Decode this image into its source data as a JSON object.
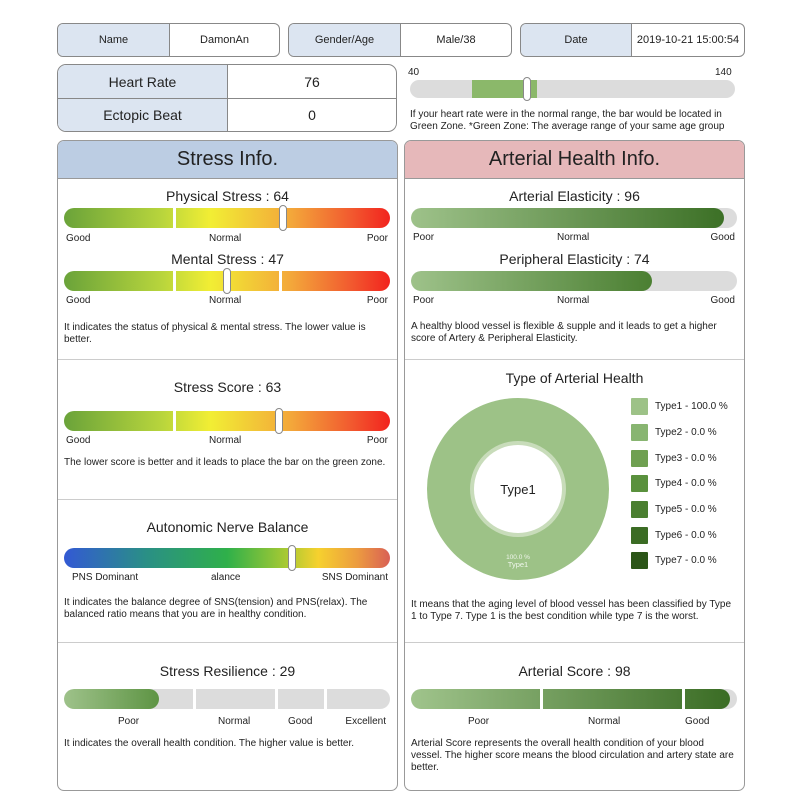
{
  "header": {
    "name_label": "Name",
    "name_value": "DamonAn",
    "gender_label": "Gender/Age",
    "gender_value": "Male/38",
    "date_label": "Date",
    "date_value": "2019-10-21 15:00:54"
  },
  "vitals": {
    "heart_rate_label": "Heart Rate",
    "heart_rate_value": "76",
    "ectopic_label": "Ectopic Beat",
    "ectopic_value": "0"
  },
  "heart_rate_bar": {
    "min_label": "40",
    "max_label": "140",
    "min": 40,
    "max": 140,
    "green_zone": [
      59,
      79
    ],
    "value": 76,
    "description": "If your heart rate were in the normal range, the bar would be located in Green Zone. *Green Zone: The average range of your same age group"
  },
  "stress": {
    "title": "Stress Info.",
    "physical": {
      "label": "Physical Stress : 64",
      "value": 64,
      "labels": [
        "Good",
        "Normal",
        "Poor"
      ]
    },
    "mental": {
      "label": "Mental Stress : 47",
      "value": 47,
      "labels": [
        "Good",
        "Normal",
        "Poor"
      ]
    },
    "stress_desc": "It indicates the status of physical & mental stress. The lower value is better.",
    "score": {
      "label": "Stress Score : 63",
      "value": 63,
      "labels": [
        "Good",
        "Normal",
        "Poor"
      ],
      "description": "The lower score is better and it leads to place the bar on the green zone."
    },
    "ans": {
      "label": "Autonomic Nerve Balance",
      "position_percent": 70,
      "labels": [
        "PNS Dominant",
        "alance",
        "SNS Dominant"
      ],
      "description": "It indicates the balance degree of SNS(tension) and PNS(relax). The balanced ratio means that you are in healthy condition."
    },
    "resilience": {
      "label": "Stress Resilience : 29",
      "value": 29,
      "labels": [
        "Poor",
        "Normal",
        "Good",
        "Excellent"
      ],
      "description": "It indicates the overall health condition. The higher value is better."
    }
  },
  "arterial": {
    "title": "Arterial Health Info.",
    "elasticity": {
      "label": "Arterial Elasticity : 96",
      "value": 96,
      "labels": [
        "Poor",
        "Normal",
        "Good"
      ]
    },
    "peripheral": {
      "label": "Peripheral Elasticity : 74",
      "value": 74,
      "labels": [
        "Poor",
        "Normal",
        "Good"
      ]
    },
    "elasticity_desc": "A healthy blood vessel is flexible & supple and it leads to get a higher score of Artery & Peripheral Elasticity.",
    "type_title": "Type of Arterial Health",
    "type_center": "Type1",
    "type_slice_label_pct": "100.0 %",
    "type_slice_label_name": "Type1",
    "type_desc": "It means that the aging level of blood vessel has been classified by Type 1 to Type 7. Type 1 is the best condition while type 7 is the worst.",
    "score": {
      "label": "Arterial Score : 98",
      "value": 98,
      "labels": [
        "Poor",
        "Normal",
        "Good"
      ],
      "description": "Arterial Score represents the overall health condition of your blood vessel. The higher score means the blood circulation and artery state are better."
    }
  },
  "chart_data": {
    "type": "pie",
    "title": "Type of Arterial Health",
    "categories": [
      "Type1",
      "Type2",
      "Type3",
      "Type4",
      "Type5",
      "Type6",
      "Type7"
    ],
    "values": [
      100.0,
      0.0,
      0.0,
      0.0,
      0.0,
      0.0,
      0.0
    ],
    "colors": [
      "#9dc287",
      "#88b571",
      "#6fa051",
      "#5a913d",
      "#4a7f30",
      "#3b6c24",
      "#2b5517"
    ],
    "legend": [
      "Type1 - 100.0 %",
      "Type2 - 0.0 %",
      "Type3 - 0.0 %",
      "Type4 - 0.0 %",
      "Type5 - 0.0 %",
      "Type6 - 0.0 %",
      "Type7 - 0.0 %"
    ],
    "legend_position": "right",
    "donut": true
  }
}
